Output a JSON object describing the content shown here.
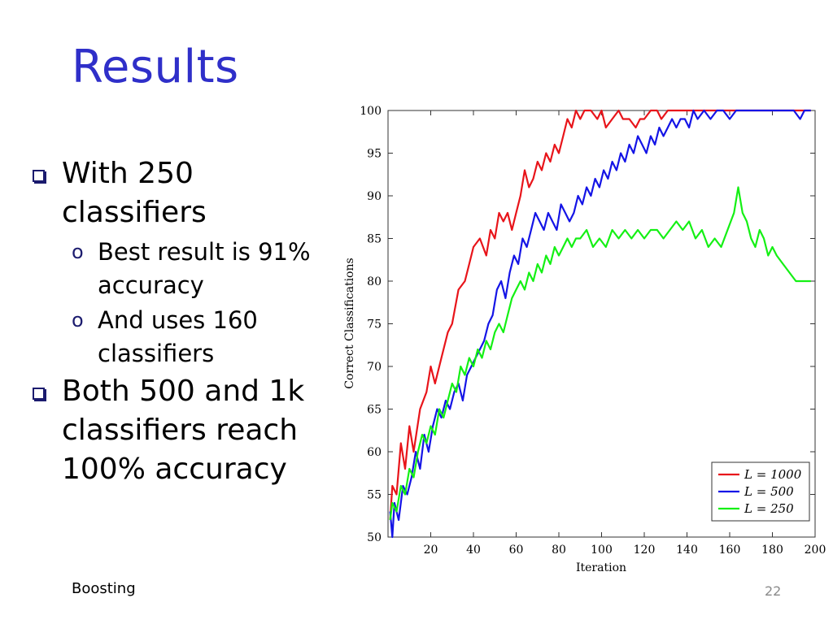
{
  "slide": {
    "title": "Results",
    "bullets": [
      {
        "text": "With 250 classifiers",
        "sub": [
          {
            "text": "Best result is 91% accuracy"
          },
          {
            "text": "And uses 160 classifiers"
          }
        ]
      },
      {
        "text": "Both 500 and 1k classifiers reach 100% accuracy",
        "sub": []
      }
    ],
    "footer_left": "Boosting",
    "page_number": "22",
    "sub_marker": "o"
  },
  "colors": {
    "title": "#2f2fc9",
    "red": "#e8141a",
    "blue": "#1414e6",
    "green": "#14f014"
  },
  "chart_data": {
    "type": "line",
    "xlabel": "Iteration",
    "ylabel": "Correct Classifications",
    "xlim": [
      0,
      200
    ],
    "ylim": [
      50,
      100
    ],
    "xticks": [
      20,
      40,
      60,
      80,
      100,
      120,
      140,
      160,
      180,
      200
    ],
    "yticks": [
      50,
      55,
      60,
      65,
      70,
      75,
      80,
      85,
      90,
      95,
      100
    ],
    "legend_position": "bottom-right",
    "grid": false,
    "series": [
      {
        "name": "L = 1000",
        "color": "#e8141a",
        "x": [
          1,
          2,
          4,
          6,
          8,
          10,
          12,
          15,
          18,
          20,
          22,
          25,
          28,
          30,
          33,
          36,
          38,
          40,
          43,
          46,
          48,
          50,
          52,
          54,
          56,
          58,
          60,
          62,
          64,
          66,
          68,
          70,
          72,
          74,
          76,
          78,
          80,
          82,
          84,
          86,
          88,
          90,
          92,
          95,
          98,
          100,
          102,
          105,
          108,
          110,
          113,
          116,
          118,
          120,
          123,
          126,
          128,
          131,
          135,
          140,
          150,
          160,
          170,
          180,
          190,
          198
        ],
        "y": [
          52,
          56,
          55,
          61,
          58,
          63,
          60,
          65,
          67,
          70,
          68,
          71,
          74,
          75,
          79,
          80,
          82,
          84,
          85,
          83,
          86,
          85,
          88,
          87,
          88,
          86,
          88,
          90,
          93,
          91,
          92,
          94,
          93,
          95,
          94,
          96,
          95,
          97,
          99,
          98,
          100,
          99,
          100,
          100,
          99,
          100,
          98,
          99,
          100,
          99,
          99,
          98,
          99,
          99,
          100,
          100,
          99,
          100,
          100,
          100,
          100,
          100,
          100,
          100,
          100,
          100
        ]
      },
      {
        "name": "L = 500",
        "color": "#1414e6",
        "x": [
          1,
          2,
          3,
          5,
          7,
          9,
          11,
          13,
          15,
          17,
          19,
          21,
          23,
          25,
          27,
          29,
          31,
          33,
          35,
          37,
          39,
          41,
          43,
          45,
          47,
          49,
          51,
          53,
          55,
          57,
          59,
          61,
          63,
          65,
          67,
          69,
          71,
          73,
          75,
          77,
          79,
          81,
          83,
          85,
          87,
          89,
          91,
          93,
          95,
          97,
          99,
          101,
          103,
          105,
          107,
          109,
          111,
          113,
          115,
          117,
          119,
          121,
          123,
          125,
          127,
          129,
          131,
          133,
          135,
          137,
          139,
          141,
          143,
          145,
          148,
          151,
          154,
          157,
          160,
          163,
          166,
          170,
          175,
          180,
          185,
          190,
          193,
          195,
          198
        ],
        "y": [
          53,
          50,
          54,
          52,
          56,
          55,
          57,
          60,
          58,
          62,
          60,
          63,
          65,
          64,
          66,
          65,
          67,
          68,
          66,
          69,
          70,
          71,
          72,
          73,
          75,
          76,
          79,
          80,
          78,
          81,
          83,
          82,
          85,
          84,
          86,
          88,
          87,
          86,
          88,
          87,
          86,
          89,
          88,
          87,
          88,
          90,
          89,
          91,
          90,
          92,
          91,
          93,
          92,
          94,
          93,
          95,
          94,
          96,
          95,
          97,
          96,
          95,
          97,
          96,
          98,
          97,
          98,
          99,
          98,
          99,
          99,
          98,
          100,
          99,
          100,
          99,
          100,
          100,
          99,
          100,
          100,
          100,
          100,
          100,
          100,
          100,
          99,
          100,
          100
        ]
      },
      {
        "name": "L = 250",
        "color": "#14f014",
        "x": [
          1,
          2,
          4,
          6,
          8,
          10,
          12,
          14,
          16,
          18,
          20,
          22,
          24,
          26,
          28,
          30,
          32,
          34,
          36,
          38,
          40,
          42,
          44,
          46,
          48,
          50,
          52,
          54,
          56,
          58,
          60,
          62,
          64,
          66,
          68,
          70,
          72,
          74,
          76,
          78,
          80,
          82,
          84,
          86,
          88,
          90,
          93,
          96,
          99,
          102,
          105,
          108,
          111,
          114,
          117,
          120,
          123,
          126,
          129,
          132,
          135,
          138,
          141,
          144,
          147,
          150,
          153,
          156,
          159,
          162,
          164,
          166,
          168,
          170,
          172,
          174,
          176,
          178,
          180,
          182,
          185,
          188,
          191,
          195,
          198
        ],
        "y": [
          52,
          54,
          53,
          56,
          55,
          58,
          57,
          60,
          62,
          61,
          63,
          62,
          65,
          64,
          66,
          68,
          67,
          70,
          69,
          71,
          70,
          72,
          71,
          73,
          72,
          74,
          75,
          74,
          76,
          78,
          79,
          80,
          79,
          81,
          80,
          82,
          81,
          83,
          82,
          84,
          83,
          84,
          85,
          84,
          85,
          85,
          86,
          84,
          85,
          84,
          86,
          85,
          86,
          85,
          86,
          85,
          86,
          86,
          85,
          86,
          87,
          86,
          87,
          85,
          86,
          84,
          85,
          84,
          86,
          88,
          91,
          88,
          87,
          85,
          84,
          86,
          85,
          83,
          84,
          83,
          82,
          81,
          80,
          80,
          80
        ]
      }
    ]
  }
}
